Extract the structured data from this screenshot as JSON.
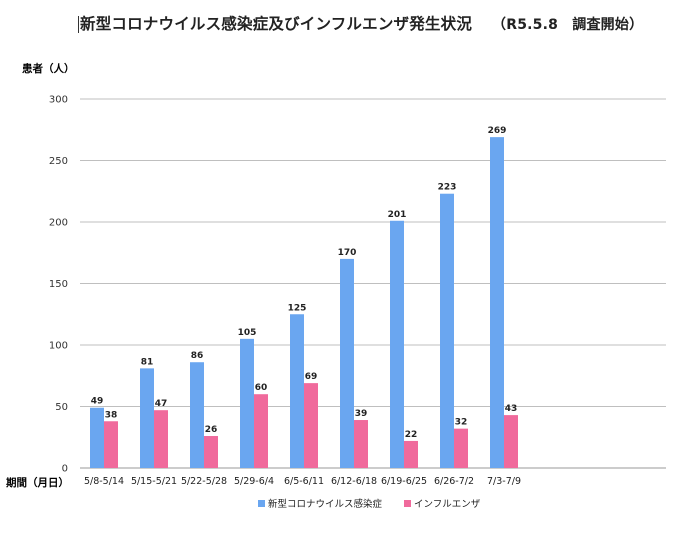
{
  "title": {
    "main": "新型コロナウイルス感染症及びインフルエンザ発生状況",
    "sub": "（R5.5.8　調査開始）"
  },
  "chart_data": {
    "type": "bar",
    "title": "新型コロナウイルス感染症及びインフルエンザ発生状況　（R5.5.8　調査開始）",
    "ylabel": "患者（人）",
    "xlabel": "期間（月日）",
    "ylim": [
      0,
      300
    ],
    "yticks": [
      0,
      50,
      100,
      150,
      200,
      250,
      300
    ],
    "grid": true,
    "legend_position": "bottom",
    "categories": [
      "5/8-5/14",
      "5/15-5/21",
      "5/22-5/28",
      "5/29-6/4",
      "6/5-6/11",
      "6/12-6/18",
      "6/19-6/25",
      "6/26-7/2",
      "7/3-7/9"
    ],
    "series": [
      {
        "name": "新型コロナウイルス感染症",
        "color": "#6aa6f0",
        "values": [
          49,
          81,
          86,
          105,
          125,
          170,
          201,
          223,
          269
        ]
      },
      {
        "name": "インフルエンザ",
        "color": "#f06a9c",
        "values": [
          38,
          47,
          26,
          60,
          69,
          39,
          22,
          32,
          43
        ]
      }
    ]
  }
}
